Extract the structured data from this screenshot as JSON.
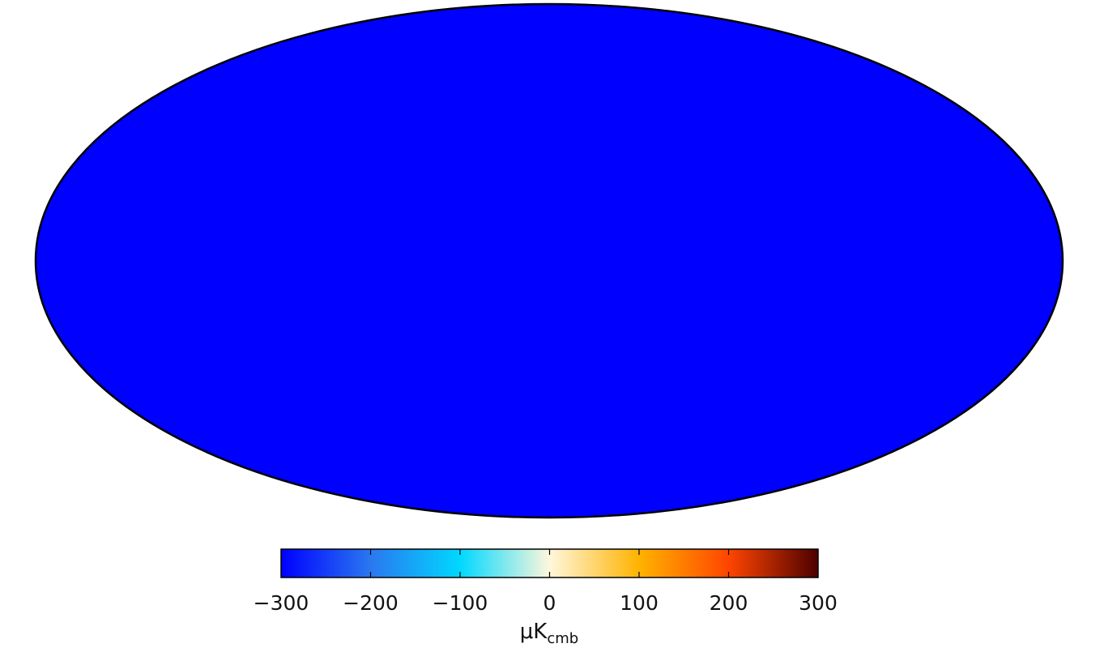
{
  "chart_data": {
    "type": "heatmap",
    "projection": "mollweide",
    "title": "",
    "description_of_marks": "full-sky temperature anisotropy map",
    "colorbar": {
      "min": -300,
      "max": 300,
      "ticks": [
        -300,
        -200,
        -100,
        0,
        100,
        200,
        300
      ],
      "tick_labels": [
        "−300",
        "−200",
        "−100",
        "0",
        "100",
        "200",
        "300"
      ],
      "unit_main": "μK",
      "unit_sub": "cmb",
      "orientation": "horizontal",
      "colors": [
        "#0000ff",
        "#2a78f0",
        "#00d8ff",
        "#fff7dc",
        "#ffb300",
        "#ff4500",
        "#4d0000"
      ]
    },
    "grid": false,
    "legend": "none"
  }
}
